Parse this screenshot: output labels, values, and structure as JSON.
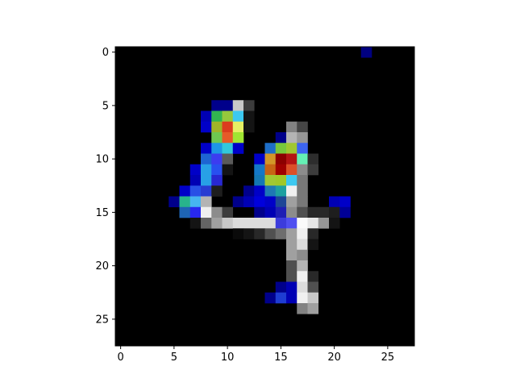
{
  "chart_data": {
    "type": "heatmap",
    "title": "",
    "xlabel": "",
    "ylabel": "",
    "rows": 28,
    "cols": 28,
    "xlim": [
      -0.5,
      27.5
    ],
    "ylim": [
      27.5,
      -0.5
    ],
    "y_axis_inverted": true,
    "grid": false,
    "background_color": "#000000",
    "x_ticks": [
      0,
      5,
      10,
      15,
      20,
      25
    ],
    "y_ticks": [
      0,
      5,
      10,
      15,
      20,
      25
    ],
    "x_tick_labels": [
      "0",
      "5",
      "10",
      "15",
      "20",
      "25"
    ],
    "y_tick_labels": [
      "0",
      "5",
      "10",
      "15",
      "20",
      "25"
    ],
    "cells": [
      {
        "row": 0,
        "col": 23,
        "color": "#000080"
      },
      {
        "row": 5,
        "col": 9,
        "color": "#00008b"
      },
      {
        "row": 5,
        "col": 10,
        "color": "#00008b"
      },
      {
        "row": 5,
        "col": 11,
        "color": "#c8c8c8"
      },
      {
        "row": 5,
        "col": 12,
        "color": "#3c3c3c"
      },
      {
        "row": 6,
        "col": 8,
        "color": "#0000b4"
      },
      {
        "row": 6,
        "col": 9,
        "color": "#32b450"
      },
      {
        "row": 6,
        "col": 10,
        "color": "#96c83c"
      },
      {
        "row": 6,
        "col": 11,
        "color": "#3cc8f0"
      },
      {
        "row": 6,
        "col": 12,
        "color": "#141414"
      },
      {
        "row": 7,
        "col": 8,
        "color": "#0000c8"
      },
      {
        "row": 7,
        "col": 9,
        "color": "#a0b428"
      },
      {
        "row": 7,
        "col": 10,
        "color": "#dc3c1e"
      },
      {
        "row": 7,
        "col": 11,
        "color": "#e6f064"
      },
      {
        "row": 7,
        "col": 12,
        "color": "#141414"
      },
      {
        "row": 7,
        "col": 16,
        "color": "#828282"
      },
      {
        "row": 7,
        "col": 17,
        "color": "#464646"
      },
      {
        "row": 8,
        "col": 9,
        "color": "#6ec850"
      },
      {
        "row": 8,
        "col": 10,
        "color": "#e65a28"
      },
      {
        "row": 8,
        "col": 11,
        "color": "#a0e632"
      },
      {
        "row": 8,
        "col": 15,
        "color": "#00008b"
      },
      {
        "row": 8,
        "col": 16,
        "color": "#b4b4b4"
      },
      {
        "row": 8,
        "col": 17,
        "color": "#969696"
      },
      {
        "row": 9,
        "col": 8,
        "color": "#0000c8"
      },
      {
        "row": 9,
        "col": 9,
        "color": "#1e96e6"
      },
      {
        "row": 9,
        "col": 10,
        "color": "#32c8dc"
      },
      {
        "row": 9,
        "col": 11,
        "color": "#0000c8"
      },
      {
        "row": 9,
        "col": 14,
        "color": "#1e6ec8"
      },
      {
        "row": 9,
        "col": 15,
        "color": "#78c83c"
      },
      {
        "row": 9,
        "col": 16,
        "color": "#a0c832"
      },
      {
        "row": 9,
        "col": 17,
        "color": "#3c64f0"
      },
      {
        "row": 10,
        "col": 8,
        "color": "#1e64d2"
      },
      {
        "row": 10,
        "col": 9,
        "color": "#3c3cf0"
      },
      {
        "row": 10,
        "col": 10,
        "color": "#5a5a5a"
      },
      {
        "row": 10,
        "col": 13,
        "color": "#0000c8"
      },
      {
        "row": 10,
        "col": 14,
        "color": "#d29628"
      },
      {
        "row": 10,
        "col": 15,
        "color": "#8c0000"
      },
      {
        "row": 10,
        "col": 16,
        "color": "#b41414"
      },
      {
        "row": 10,
        "col": 17,
        "color": "#64f0b4"
      },
      {
        "row": 10,
        "col": 18,
        "color": "#2d2d2d"
      },
      {
        "row": 11,
        "col": 7,
        "color": "#0000c8"
      },
      {
        "row": 11,
        "col": 8,
        "color": "#28a0e6"
      },
      {
        "row": 11,
        "col": 9,
        "color": "#2850f0"
      },
      {
        "row": 11,
        "col": 10,
        "color": "#141414"
      },
      {
        "row": 11,
        "col": 13,
        "color": "#1478c8"
      },
      {
        "row": 11,
        "col": 14,
        "color": "#c86414"
      },
      {
        "row": 11,
        "col": 15,
        "color": "#a00000"
      },
      {
        "row": 11,
        "col": 16,
        "color": "#dc5028"
      },
      {
        "row": 11,
        "col": 17,
        "color": "#8c8c8c"
      },
      {
        "row": 11,
        "col": 18,
        "color": "#3c3c3c"
      },
      {
        "row": 12,
        "col": 7,
        "color": "#0000b4"
      },
      {
        "row": 12,
        "col": 8,
        "color": "#28a0e6"
      },
      {
        "row": 12,
        "col": 9,
        "color": "#2828d2"
      },
      {
        "row": 12,
        "col": 13,
        "color": "#1478b4"
      },
      {
        "row": 12,
        "col": 14,
        "color": "#a0c832"
      },
      {
        "row": 12,
        "col": 15,
        "color": "#a0c828"
      },
      {
        "row": 12,
        "col": 16,
        "color": "#3cc8f0"
      },
      {
        "row": 12,
        "col": 17,
        "color": "#787878"
      },
      {
        "row": 13,
        "col": 6,
        "color": "#0000c8"
      },
      {
        "row": 13,
        "col": 7,
        "color": "#2850e6"
      },
      {
        "row": 13,
        "col": 8,
        "color": "#283cd2"
      },
      {
        "row": 13,
        "col": 9,
        "color": "#1e1e1e"
      },
      {
        "row": 13,
        "col": 12,
        "color": "#00008b"
      },
      {
        "row": 13,
        "col": 13,
        "color": "#0000c8"
      },
      {
        "row": 13,
        "col": 14,
        "color": "#1e78b4"
      },
      {
        "row": 13,
        "col": 15,
        "color": "#1ea0a0"
      },
      {
        "row": 13,
        "col": 16,
        "color": "#f0f0f0"
      },
      {
        "row": 13,
        "col": 17,
        "color": "#787878"
      },
      {
        "row": 14,
        "col": 5,
        "color": "#00008b"
      },
      {
        "row": 14,
        "col": 6,
        "color": "#28b48c"
      },
      {
        "row": 14,
        "col": 7,
        "color": "#46b4f0"
      },
      {
        "row": 14,
        "col": 8,
        "color": "#b4b4b4"
      },
      {
        "row": 14,
        "col": 11,
        "color": "#00008b"
      },
      {
        "row": 14,
        "col": 12,
        "color": "#0000b4"
      },
      {
        "row": 14,
        "col": 13,
        "color": "#0000dc"
      },
      {
        "row": 14,
        "col": 14,
        "color": "#0000c8"
      },
      {
        "row": 14,
        "col": 15,
        "color": "#1e4696"
      },
      {
        "row": 14,
        "col": 16,
        "color": "#a0a0a0"
      },
      {
        "row": 14,
        "col": 17,
        "color": "#787878"
      },
      {
        "row": 14,
        "col": 20,
        "color": "#0000b4"
      },
      {
        "row": 14,
        "col": 21,
        "color": "#0000c8"
      },
      {
        "row": 15,
        "col": 6,
        "color": "#1e64b4"
      },
      {
        "row": 15,
        "col": 7,
        "color": "#2828f0"
      },
      {
        "row": 15,
        "col": 8,
        "color": "#f0f0f0"
      },
      {
        "row": 15,
        "col": 9,
        "color": "#8c8c8c"
      },
      {
        "row": 15,
        "col": 10,
        "color": "#3c3c3c"
      },
      {
        "row": 15,
        "col": 13,
        "color": "#00008b"
      },
      {
        "row": 15,
        "col": 14,
        "color": "#0000b4"
      },
      {
        "row": 15,
        "col": 15,
        "color": "#1e1eb4"
      },
      {
        "row": 15,
        "col": 16,
        "color": "#8c8c8c"
      },
      {
        "row": 15,
        "col": 17,
        "color": "#505050"
      },
      {
        "row": 15,
        "col": 18,
        "color": "#282828"
      },
      {
        "row": 15,
        "col": 19,
        "color": "#282828"
      },
      {
        "row": 15,
        "col": 20,
        "color": "#1e1e1e"
      },
      {
        "row": 15,
        "col": 21,
        "color": "#000096"
      },
      {
        "row": 16,
        "col": 7,
        "color": "#141414"
      },
      {
        "row": 16,
        "col": 8,
        "color": "#646464"
      },
      {
        "row": 16,
        "col": 9,
        "color": "#a0a0a0"
      },
      {
        "row": 16,
        "col": 10,
        "color": "#c8c8c8"
      },
      {
        "row": 16,
        "col": 11,
        "color": "#dcdcdc"
      },
      {
        "row": 16,
        "col": 12,
        "color": "#dcdcdc"
      },
      {
        "row": 16,
        "col": 13,
        "color": "#dcdcdc"
      },
      {
        "row": 16,
        "col": 14,
        "color": "#dcdcdc"
      },
      {
        "row": 16,
        "col": 15,
        "color": "#3c3cdc"
      },
      {
        "row": 16,
        "col": 16,
        "color": "#5050f0"
      },
      {
        "row": 16,
        "col": 17,
        "color": "#fafafa"
      },
      {
        "row": 16,
        "col": 18,
        "color": "#e6e6e6"
      },
      {
        "row": 16,
        "col": 19,
        "color": "#969696"
      },
      {
        "row": 16,
        "col": 20,
        "color": "#141414"
      },
      {
        "row": 17,
        "col": 11,
        "color": "#0a0a0a"
      },
      {
        "row": 17,
        "col": 12,
        "color": "#141414"
      },
      {
        "row": 17,
        "col": 13,
        "color": "#282828"
      },
      {
        "row": 17,
        "col": 14,
        "color": "#505050"
      },
      {
        "row": 17,
        "col": 15,
        "color": "#6e6e6e"
      },
      {
        "row": 17,
        "col": 16,
        "color": "#a0a0a0"
      },
      {
        "row": 17,
        "col": 17,
        "color": "#f0f0f0"
      },
      {
        "row": 17,
        "col": 18,
        "color": "#282828"
      },
      {
        "row": 18,
        "col": 16,
        "color": "#a0a0a0"
      },
      {
        "row": 18,
        "col": 17,
        "color": "#dcdcdc"
      },
      {
        "row": 18,
        "col": 18,
        "color": "#141414"
      },
      {
        "row": 19,
        "col": 16,
        "color": "#a0a0a0"
      },
      {
        "row": 19,
        "col": 17,
        "color": "#8c8c8c"
      },
      {
        "row": 20,
        "col": 16,
        "color": "#505050"
      },
      {
        "row": 20,
        "col": 17,
        "color": "#b4b4b4"
      },
      {
        "row": 21,
        "col": 16,
        "color": "#505050"
      },
      {
        "row": 21,
        "col": 17,
        "color": "#f0f0f0"
      },
      {
        "row": 21,
        "col": 18,
        "color": "#282828"
      },
      {
        "row": 22,
        "col": 15,
        "color": "#00008b"
      },
      {
        "row": 22,
        "col": 16,
        "color": "#0000b4"
      },
      {
        "row": 22,
        "col": 17,
        "color": "#dcdcdc"
      },
      {
        "row": 22,
        "col": 18,
        "color": "#505050"
      },
      {
        "row": 23,
        "col": 14,
        "color": "#00008b"
      },
      {
        "row": 23,
        "col": 15,
        "color": "#1e3cd2"
      },
      {
        "row": 23,
        "col": 16,
        "color": "#0000b4"
      },
      {
        "row": 23,
        "col": 17,
        "color": "#f0f0f0"
      },
      {
        "row": 23,
        "col": 18,
        "color": "#c8c8c8"
      },
      {
        "row": 24,
        "col": 17,
        "color": "#828282"
      },
      {
        "row": 24,
        "col": 18,
        "color": "#a0a0a0"
      }
    ]
  }
}
